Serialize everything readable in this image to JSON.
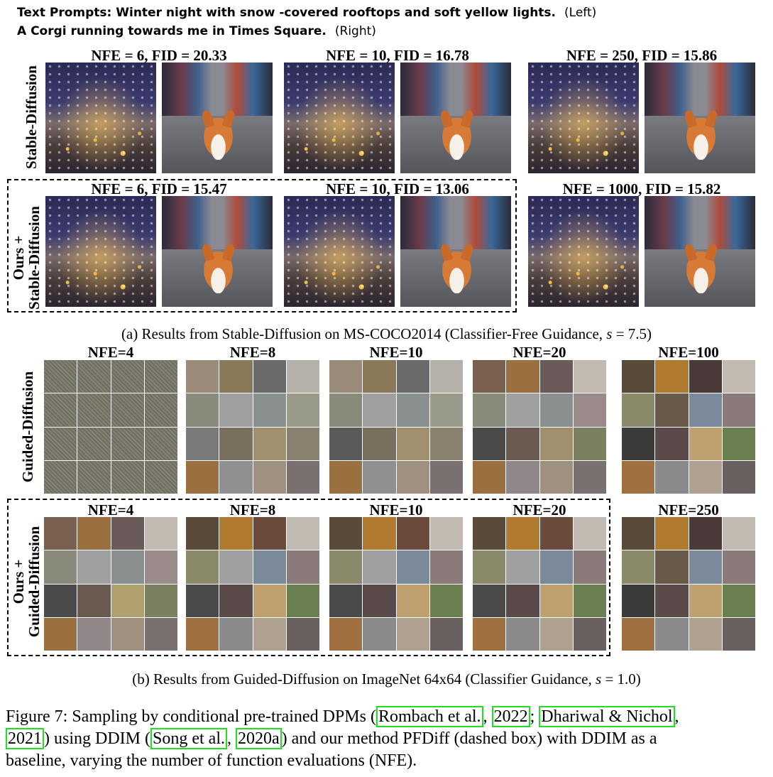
{
  "prompts": {
    "line1": "Text Prompts: Winter night with snow -covered rooftops and soft yellow lights.",
    "line1_side": "(Left)",
    "line2": "A Corgi running towards me in Times Square.",
    "line2_side": "(Right)"
  },
  "section_a": {
    "row1_label": "Stable-Diffusion",
    "row2_label_line1": "Ours +",
    "row2_label_line2": "Stable-Diffusion",
    "row1_titles": [
      "NFE = 6, FID = 20.33",
      "NFE = 10, FID = 16.78",
      "NFE = 250, FID = 15.86"
    ],
    "row2_titles": [
      "NFE = 6,  FID = 15.47",
      "NFE = 10, FID = 13.06",
      "NFE = 1000, FID = 15.82"
    ],
    "caption_main": "(a) Results from Stable-Diffusion on MS-COCO2014 (Classifier-Free Guidance, ",
    "caption_var": "s",
    "caption_tail": " = 7.5)"
  },
  "section_b": {
    "row1_label": "Guided-Diffusion",
    "row2_label_line1": "Ours +",
    "row2_label_line2": "Guided-Diffusion",
    "row1_titles": [
      "NFE=4",
      "NFE=8",
      "NFE=10",
      "NFE=20",
      "NFE=100"
    ],
    "row2_titles": [
      "NFE=4",
      "NFE=8",
      "NFE=10",
      "NFE=20",
      "NFE=250"
    ],
    "caption_main": "(b) Results from Guided-Diffusion on ImageNet 64x64 (Classifier Guidance, ",
    "caption_var": "s",
    "caption_tail": " = 1.0)"
  },
  "figure_caption": {
    "prefix": "Figure 7: Sampling by conditional pre-trained DPMs (",
    "cite1": "Rombach et al.",
    "cite1_year": "2022",
    "cite2": "Dhariwal & Nichol",
    "cite2_year": "2021",
    "mid": ") using DDIM (",
    "cite3": "Song et al.",
    "cite3_year": "2020a",
    "rest1": ") and our method PFDiff (dashed box) with DDIM as a",
    "rest2": "baseline, varying the number of function evaluations (NFE)."
  },
  "colors": {
    "citation_box": "#22dd22"
  }
}
